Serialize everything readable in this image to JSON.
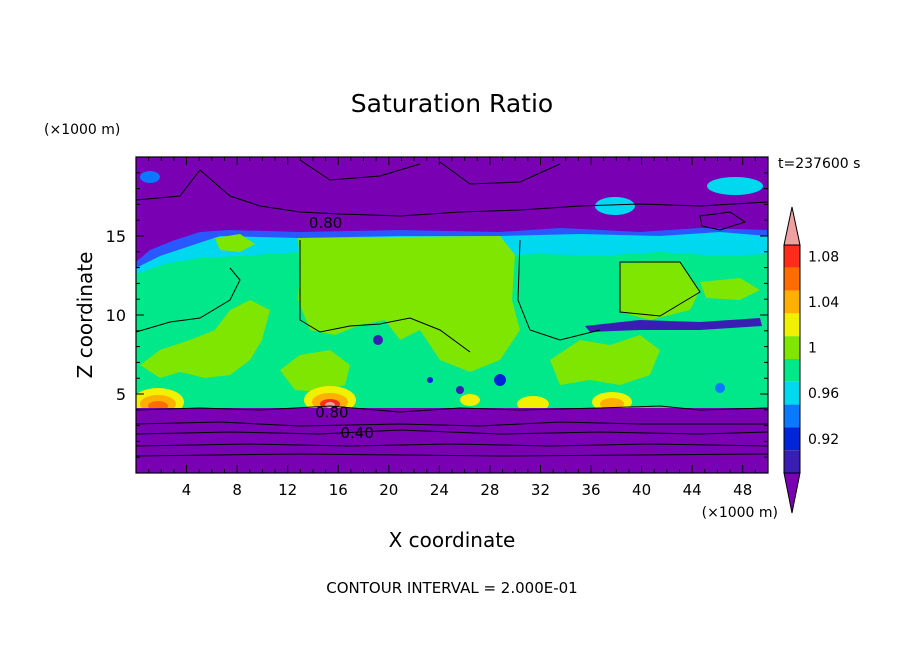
{
  "chart_data": {
    "type": "heatmap",
    "title": "Saturation Ratio",
    "xlabel": "X coordinate",
    "ylabel": "Z coordinate",
    "x_unit": "(×1000 m)",
    "y_unit": "(×1000 m)",
    "time_label": "t=237600 s",
    "footer": "CONTOUR INTERVAL = 2.000E-01",
    "xlim": [
      0,
      50
    ],
    "ylim": [
      0,
      20
    ],
    "xticks": [
      4,
      8,
      12,
      16,
      20,
      24,
      28,
      32,
      36,
      40,
      44,
      48
    ],
    "yticks": [
      5,
      10,
      15
    ],
    "contour_labels": [
      {
        "text": "0.80",
        "x": 15,
        "z": 15.9
      },
      {
        "text": "0.80",
        "x": 15.5,
        "z": 3.9
      },
      {
        "text": "0.40",
        "x": 17.5,
        "z": 2.6
      }
    ],
    "colorbar": {
      "levels": [
        0.92,
        0.96,
        1,
        1.04,
        1.08
      ],
      "tick_labels": [
        "0.92",
        "0.96",
        "1",
        "1.04",
        "1.08"
      ],
      "colors": [
        "#7a00b4",
        "#3a1eb4",
        "#0024d8",
        "#0a78ff",
        "#00d8f0",
        "#00e88a",
        "#7ee600",
        "#f0f000",
        "#ffb000",
        "#ff6c00",
        "#ff2c1c",
        "#f0a0a0"
      ]
    },
    "regions": [
      {
        "name": "upper-dry-layer",
        "zrange": [
          15,
          20
        ],
        "value": "< 0.92"
      },
      {
        "name": "moist-mid-layer",
        "zrange": [
          4,
          15
        ],
        "value": "0.98-1.02"
      },
      {
        "name": "surface-dry-layer",
        "zrange": [
          0,
          4
        ],
        "value": "< 0.92"
      },
      {
        "name": "supersaturated-bubbles",
        "x": [
          2,
          14.5,
          31,
          38.5
        ],
        "z": 4.5,
        "value": "up to 1.08"
      }
    ]
  }
}
